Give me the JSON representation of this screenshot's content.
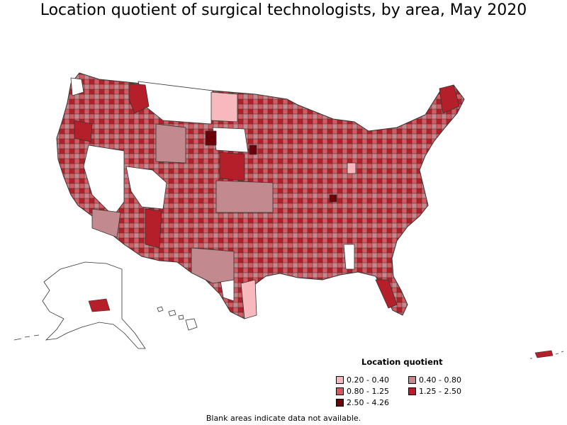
{
  "title": "Location quotient of surgical technologists, by area, May 2020",
  "legend": {
    "title": "Location quotient",
    "items": [
      {
        "label": "0.20 - 0.40",
        "color": "#f7b9bd"
      },
      {
        "label": "0.40 - 0.80",
        "color": "#c28a8e"
      },
      {
        "label": "0.80 - 1.25",
        "color": "#d45a62"
      },
      {
        "label": "1.25 - 2.50",
        "color": "#b51f2a"
      },
      {
        "label": "2.50 - 4.26",
        "color": "#6b0009"
      }
    ]
  },
  "footnote": "Blank areas indicate data not available.",
  "colors": {
    "no_data": "#ffffff",
    "border": "#333333"
  }
}
